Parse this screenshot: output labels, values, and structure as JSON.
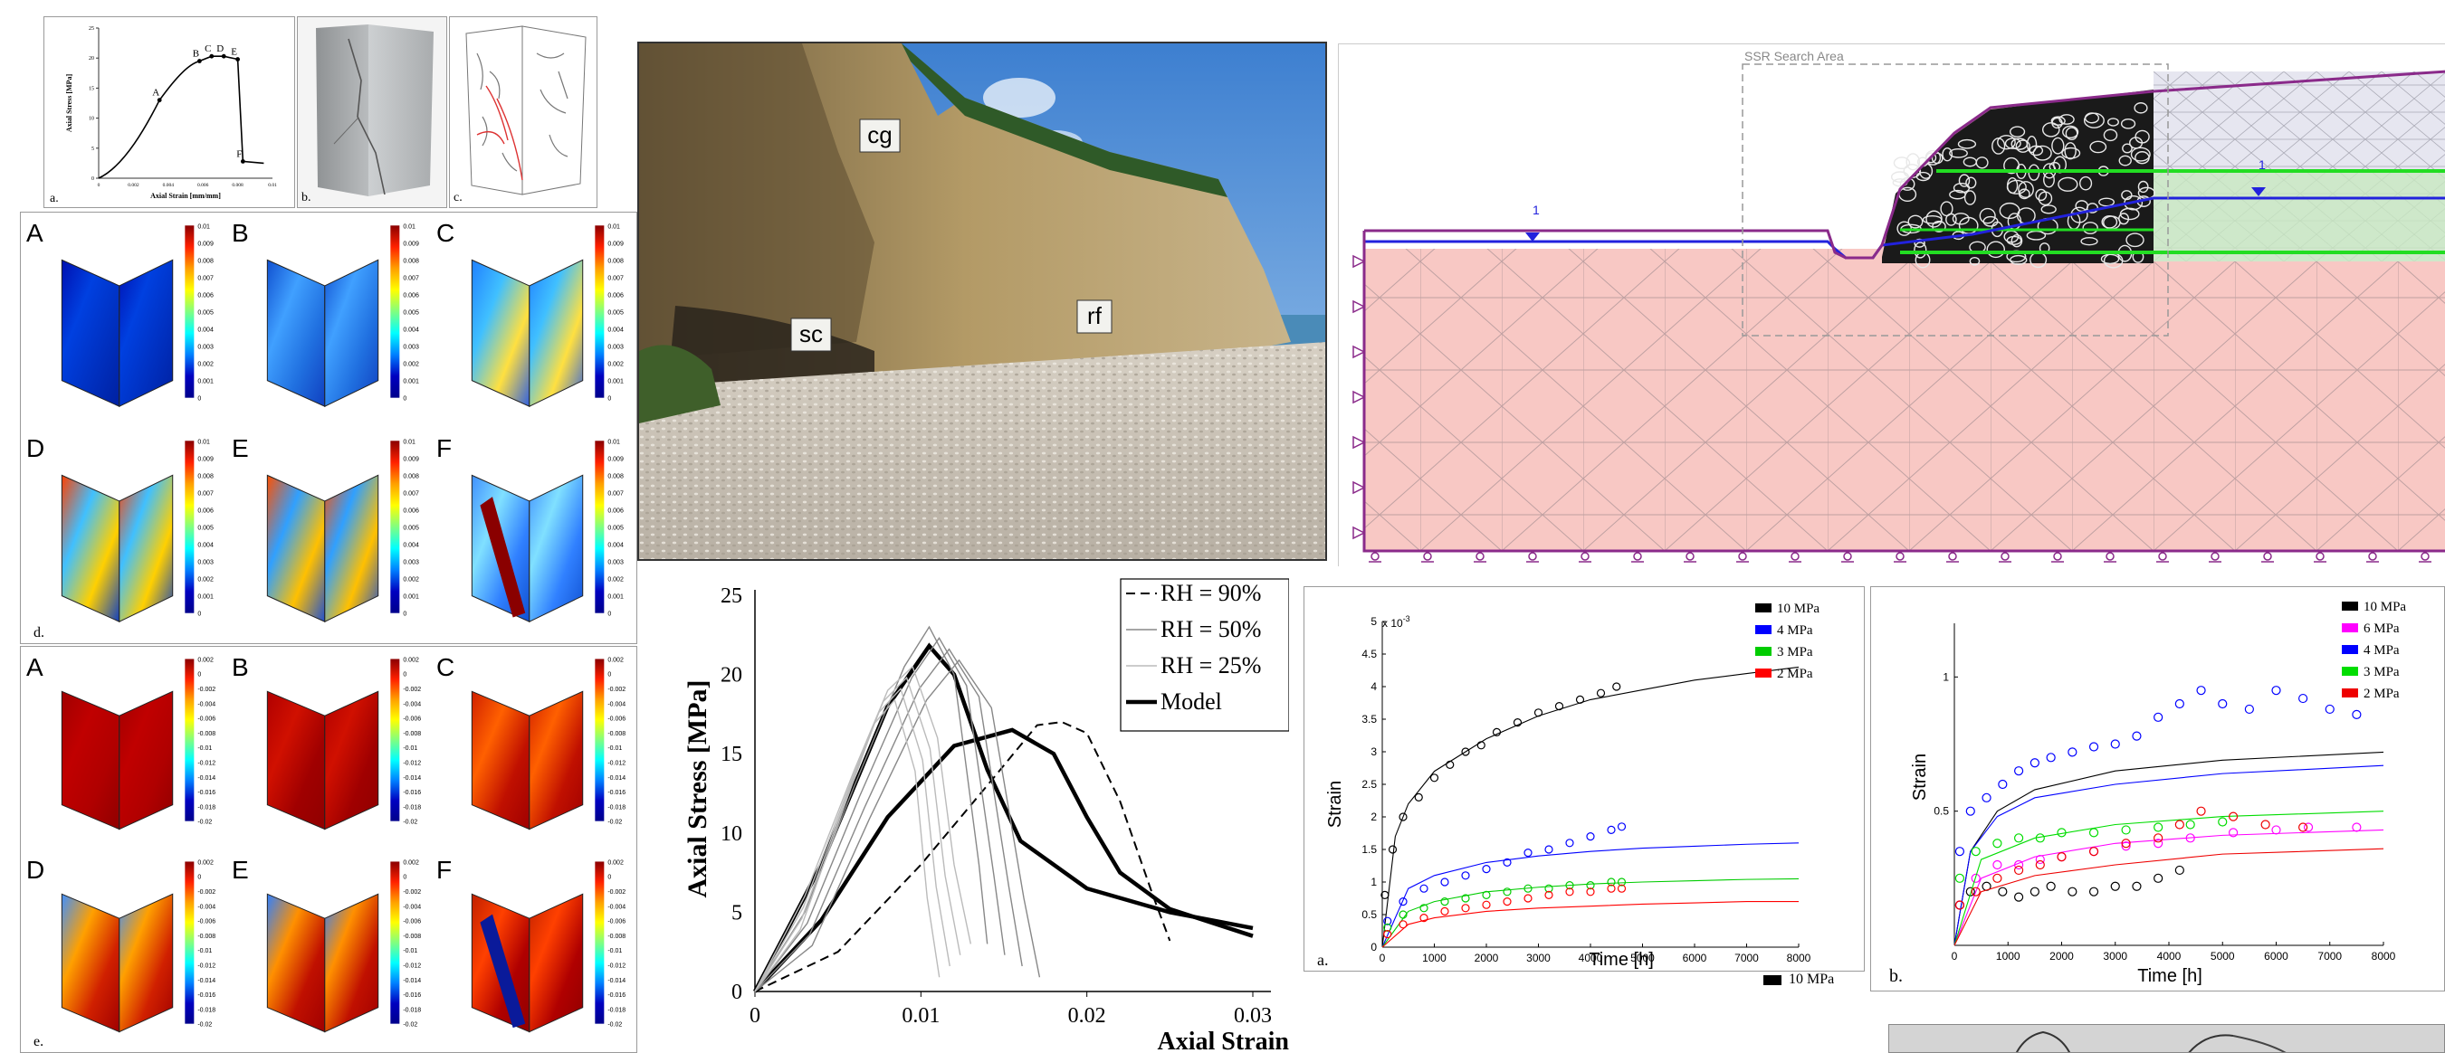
{
  "stress_strain_inset": {
    "ylabel": "Axial Stress [MPa]",
    "xlabel": "Axial Strain [mm/mm]",
    "y_ticks": [
      "0",
      "5",
      "10",
      "15",
      "20",
      "25"
    ],
    "x_ticks": [
      "0",
      "0.002",
      "0.004",
      "0.006",
      "0.008",
      "0.01"
    ],
    "points": [
      {
        "label": "A",
        "strain": 0.0035,
        "stress": 13
      },
      {
        "label": "B",
        "strain": 0.0058,
        "stress": 19.5
      },
      {
        "label": "C",
        "strain": 0.0065,
        "stress": 20.3
      },
      {
        "label": "D",
        "strain": 0.0072,
        "stress": 20.3
      },
      {
        "label": "E",
        "strain": 0.008,
        "stress": 19.8
      },
      {
        "label": "F",
        "strain": 0.0083,
        "stress": 2.8
      }
    ],
    "panel_letter": "a."
  },
  "photo_b_letter": "b.",
  "photo_c_letter": "c.",
  "dic_d": {
    "panel_letter": "d.",
    "sub_letters": [
      "A",
      "B",
      "C",
      "D",
      "E",
      "F"
    ],
    "colorbar_ticks": [
      "0.01",
      "0.009",
      "0.008",
      "0.007",
      "0.006",
      "0.005",
      "0.004",
      "0.003",
      "0.002",
      "0.001",
      "0"
    ]
  },
  "dic_e": {
    "panel_letter": "e.",
    "sub_letters": [
      "A",
      "B",
      "C",
      "D",
      "E",
      "F"
    ],
    "colorbar_ticks": [
      "0.002",
      "0",
      "-0.002",
      "-0.004",
      "-0.006",
      "-0.008",
      "-0.01",
      "-0.012",
      "-0.014",
      "-0.016",
      "-0.018",
      "-0.02"
    ]
  },
  "cliff_photo": {
    "labels": [
      "cg",
      "sc",
      "rf"
    ]
  },
  "fem": {
    "search_area_label": "SSR Search Area",
    "water_marker": "1"
  },
  "rh_chart": {
    "ylabel": "Axial Stress [MPa]",
    "xlabel": "Axial Strain",
    "legend": [
      "RH = 90%",
      "RH = 50%",
      "RH = 25%",
      "Model"
    ]
  },
  "creep_a": {
    "panel_letter": "a.",
    "exponent": "x 10",
    "exponent_power": "-3",
    "ylabel": "Strain",
    "xlabel": "Time [h]",
    "legend": [
      "10 MPa",
      "4 MPa",
      "3 MPa",
      "2 MPa"
    ],
    "below_legend": "10 MPa"
  },
  "creep_b": {
    "panel_letter": "b.",
    "ylabel": "Strain",
    "xlabel": "Time [h]",
    "legend": [
      "10 MPa",
      "6 MPa",
      "4 MPa",
      "3 MPa",
      "2 MPa"
    ]
  },
  "chart_data": [
    {
      "type": "line",
      "title": "",
      "xlabel": "Axial Strain",
      "ylabel": "Axial Stress [MPa]",
      "xlim": [
        0,
        0.03
      ],
      "ylim": [
        0,
        25
      ],
      "x_ticks": [
        "0",
        "0.01",
        "0.02",
        "0.03"
      ],
      "y_ticks": [
        "0",
        "5",
        "10",
        "15",
        "20",
        "25"
      ],
      "legend_position": "top-right",
      "series": [
        {
          "name": "Model",
          "x": [
            0,
            0.004,
            0.008,
            0.0105,
            0.012,
            0.014,
            0.016,
            0.02,
            0.025,
            0.03
          ],
          "y": [
            0,
            8,
            18,
            21.8,
            20,
            14,
            9.5,
            6.5,
            5,
            4
          ]
        },
        {
          "name": "Model",
          "x": [
            0,
            0.004,
            0.008,
            0.012,
            0.0155,
            0.018,
            0.02,
            0.022,
            0.025,
            0.03
          ],
          "y": [
            0,
            4.5,
            11,
            15.5,
            16.5,
            15,
            11,
            7.5,
            5.2,
            3.5
          ]
        },
        {
          "name": "RH = 90%",
          "x": [
            0,
            0.005,
            0.01,
            0.014,
            0.017,
            0.0185,
            0.02,
            0.022,
            0.024,
            0.025
          ],
          "y": [
            0,
            2.5,
            8,
            13,
            16.8,
            17,
            16.3,
            12,
            6,
            3.2
          ]
        },
        {
          "name": "RH = 50%",
          "x": [
            0,
            0.003,
            0.006,
            0.009,
            0.0105,
            0.012,
            0.0135,
            0.014
          ],
          "y": [
            0,
            5,
            13,
            20.5,
            23,
            20,
            8,
            3
          ]
        },
        {
          "name": "RH = 25%",
          "x": [
            0,
            0.003,
            0.006,
            0.008,
            0.0095,
            0.011,
            0.012,
            0.013
          ],
          "y": [
            0,
            6,
            14,
            19,
            20.5,
            16,
            8,
            3
          ]
        }
      ]
    },
    {
      "type": "scatter",
      "title": "",
      "xlabel": "Time [h]",
      "ylabel": "Strain",
      "xlim": [
        0,
        8000
      ],
      "ylim": [
        0,
        5
      ],
      "x_ticks": [
        "0",
        "1000",
        "2000",
        "3000",
        "4000",
        "5000",
        "6000",
        "7000",
        "8000"
      ],
      "y_ticks": [
        "0",
        "0.5",
        "1",
        "1.5",
        "2",
        "2.5",
        "3",
        "3.5",
        "4",
        "4.5",
        "5"
      ],
      "series": [
        {
          "name": "10 MPa",
          "color": "#000000",
          "x": [
            50,
            200,
            400,
            700,
            1000,
            1300,
            1600,
            1900,
            2200,
            2600,
            3000,
            3400,
            3800,
            4200,
            4500
          ],
          "y": [
            0.8,
            1.5,
            2.0,
            2.3,
            2.6,
            2.8,
            3.0,
            3.1,
            3.3,
            3.45,
            3.6,
            3.7,
            3.8,
            3.9,
            4.0
          ],
          "fit_x": [
            0,
            250,
            500,
            1000,
            2000,
            3000,
            4000,
            5000,
            6000,
            7000,
            8000
          ],
          "fit_y": [
            0,
            1.7,
            2.2,
            2.7,
            3.2,
            3.55,
            3.8,
            3.95,
            4.1,
            4.2,
            4.3
          ]
        },
        {
          "name": "4 MPa",
          "color": "#0000ff",
          "x": [
            100,
            400,
            800,
            1200,
            1600,
            2000,
            2400,
            2800,
            3200,
            3600,
            4000,
            4400,
            4600
          ],
          "y": [
            0.4,
            0.7,
            0.9,
            1.0,
            1.1,
            1.2,
            1.3,
            1.45,
            1.5,
            1.6,
            1.7,
            1.8,
            1.85
          ],
          "fit_x": [
            0,
            500,
            1000,
            2000,
            3000,
            4000,
            5000,
            6000,
            7000,
            8000
          ],
          "fit_y": [
            0,
            0.9,
            1.1,
            1.3,
            1.4,
            1.47,
            1.52,
            1.55,
            1.58,
            1.6
          ]
        },
        {
          "name": "3 MPa",
          "color": "#00cc00",
          "x": [
            100,
            400,
            800,
            1200,
            1600,
            2000,
            2400,
            2800,
            3200,
            3600,
            4000,
            4400,
            4600
          ],
          "y": [
            0.3,
            0.5,
            0.6,
            0.7,
            0.75,
            0.8,
            0.85,
            0.9,
            0.9,
            0.95,
            0.95,
            1.0,
            1.0
          ],
          "fit_x": [
            0,
            500,
            1000,
            2000,
            3000,
            4000,
            5000,
            6000,
            7000,
            8000
          ],
          "fit_y": [
            0,
            0.55,
            0.7,
            0.85,
            0.92,
            0.97,
            1.0,
            1.02,
            1.04,
            1.05
          ]
        },
        {
          "name": "2 MPa",
          "color": "#ff0000",
          "x": [
            100,
            400,
            800,
            1200,
            1600,
            2000,
            2400,
            2800,
            3200,
            3600,
            4000,
            4400,
            4600
          ],
          "y": [
            0.2,
            0.35,
            0.45,
            0.55,
            0.6,
            0.65,
            0.7,
            0.75,
            0.8,
            0.85,
            0.85,
            0.9,
            0.9
          ],
          "fit_x": [
            0,
            500,
            1000,
            2000,
            3000,
            4000,
            5000,
            6000,
            7000,
            8000
          ],
          "fit_y": [
            0,
            0.35,
            0.45,
            0.55,
            0.6,
            0.63,
            0.66,
            0.68,
            0.7,
            0.7
          ]
        }
      ]
    },
    {
      "type": "scatter",
      "title": "",
      "xlabel": "Time [h]",
      "ylabel": "Strain",
      "xlim": [
        0,
        8000
      ],
      "ylim": [
        0,
        1.2
      ],
      "x_ticks": [
        "0",
        "1000",
        "2000",
        "3000",
        "4000",
        "5000",
        "6000",
        "7000",
        "8000"
      ],
      "y_ticks": [
        "0.5",
        "1"
      ],
      "series": [
        {
          "name": "10 MPa",
          "color": "#000000",
          "x": [
            100,
            300,
            600,
            900,
            1200,
            1500,
            1800,
            2200,
            2600,
            3000,
            3400,
            3800,
            4200
          ],
          "y": [
            0.15,
            0.2,
            0.22,
            0.2,
            0.18,
            0.2,
            0.22,
            0.2,
            0.2,
            0.22,
            0.22,
            0.25,
            0.28
          ],
          "fit_x": [
            0,
            300,
            800,
            1500,
            3000,
            5000,
            8000
          ],
          "fit_y": [
            0,
            0.35,
            0.5,
            0.58,
            0.65,
            0.69,
            0.72
          ]
        },
        {
          "name": "6 MPa",
          "color": "#ff00ff",
          "x": [
            100,
            400,
            800,
            1200,
            1600,
            2000,
            2600,
            3200,
            3800,
            4400,
            5200,
            6000,
            6600,
            7500
          ],
          "y": [
            0.15,
            0.25,
            0.3,
            0.3,
            0.32,
            0.33,
            0.35,
            0.37,
            0.38,
            0.4,
            0.42,
            0.43,
            0.44,
            0.44
          ],
          "fit_x": [
            0,
            500,
            1500,
            3000,
            5000,
            8000
          ],
          "fit_y": [
            0,
            0.25,
            0.33,
            0.38,
            0.41,
            0.43
          ]
        },
        {
          "name": "4 MPa",
          "color": "#0000ff",
          "x": [
            100,
            300,
            600,
            900,
            1200,
            1500,
            1800,
            2200,
            2600,
            3000,
            3400,
            3800,
            4200,
            4600,
            5000,
            5500,
            6000,
            6500,
            7000,
            7500
          ],
          "y": [
            0.35,
            0.5,
            0.55,
            0.6,
            0.65,
            0.68,
            0.7,
            0.72,
            0.74,
            0.75,
            0.78,
            0.85,
            0.9,
            0.95,
            0.9,
            0.88,
            0.95,
            0.92,
            0.88,
            0.86
          ],
          "fit_x": [
            0,
            300,
            800,
            1500,
            3000,
            5000,
            8000
          ],
          "fit_y": [
            0,
            0.35,
            0.48,
            0.55,
            0.6,
            0.64,
            0.67
          ]
        },
        {
          "name": "3 MPa",
          "color": "#00dd00",
          "x": [
            100,
            400,
            800,
            1200,
            1600,
            2000,
            2600,
            3200,
            3800,
            4400,
            5000
          ],
          "y": [
            0.25,
            0.35,
            0.38,
            0.4,
            0.4,
            0.42,
            0.42,
            0.43,
            0.44,
            0.45,
            0.46
          ],
          "fit_x": [
            0,
            500,
            1500,
            3000,
            5000,
            8000
          ],
          "fit_y": [
            0,
            0.32,
            0.4,
            0.45,
            0.48,
            0.5
          ]
        },
        {
          "name": "2 MPa",
          "color": "#ee0000",
          "x": [
            100,
            400,
            800,
            1200,
            1600,
            2000,
            2600,
            3200,
            3800,
            4200,
            4600,
            5200,
            5800,
            6500
          ],
          "y": [
            0.15,
            0.2,
            0.25,
            0.28,
            0.3,
            0.33,
            0.35,
            0.38,
            0.4,
            0.45,
            0.5,
            0.48,
            0.45,
            0.44
          ],
          "fit_x": [
            0,
            500,
            1500,
            3000,
            5000,
            8000
          ],
          "fit_y": [
            0,
            0.2,
            0.26,
            0.3,
            0.34,
            0.36
          ]
        }
      ]
    }
  ]
}
